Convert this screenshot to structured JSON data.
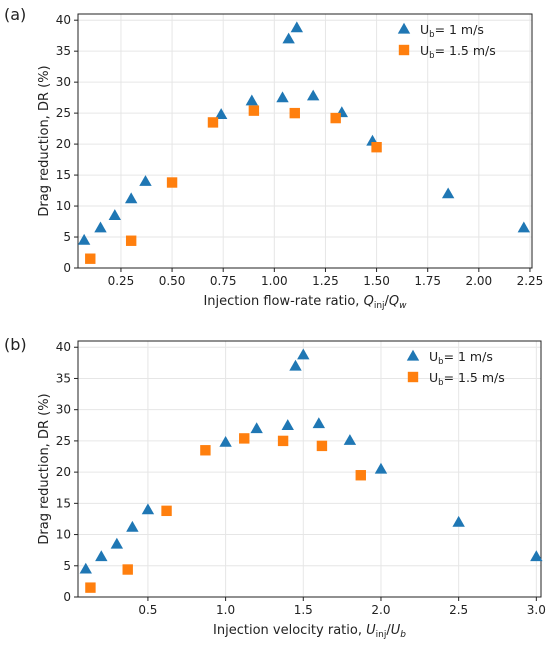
{
  "colors": {
    "series_1": "#1f77b4",
    "series_2": "#ff7f0e"
  },
  "chart_data": [
    {
      "type": "scatter",
      "panel_label": "(a)",
      "xlabel": "Injection flow-rate ratio, Q_inj/Q_w",
      "xlabel_parts": {
        "main": "Injection flow-rate ratio, ",
        "var1": "Q",
        "sub1": "inj",
        "slash": "/",
        "var2": "Q",
        "sub2": "w"
      },
      "ylabel": "Drag reduction, DR (%)",
      "xlim": [
        0.04,
        2.26
      ],
      "ylim": [
        0,
        41
      ],
      "xticks": [
        0.25,
        0.5,
        0.75,
        1.0,
        1.25,
        1.5,
        1.75,
        2.0,
        2.25
      ],
      "xtick_labels": [
        "0.25",
        "0.50",
        "0.75",
        "1.00",
        "1.25",
        "1.50",
        "1.75",
        "2.00",
        "2.25"
      ],
      "yticks": [
        0,
        5,
        10,
        15,
        20,
        25,
        30,
        35,
        40
      ],
      "ytick_labels": [
        "0",
        "5",
        "10",
        "15",
        "20",
        "25",
        "30",
        "35",
        "40"
      ],
      "grid": true,
      "legend_position": "top-right",
      "series": [
        {
          "name": "U_b= 1 m/s",
          "label_main": "U",
          "label_sub": "b",
          "label_rest": "= 1 m/s",
          "marker": "triangle",
          "points": [
            [
              0.07,
              4.5
            ],
            [
              0.15,
              6.5
            ],
            [
              0.22,
              8.5
            ],
            [
              0.3,
              11.2
            ],
            [
              0.37,
              14.0
            ],
            [
              0.74,
              24.8
            ],
            [
              0.89,
              27.0
            ],
            [
              1.04,
              27.5
            ],
            [
              1.07,
              37.0
            ],
            [
              1.11,
              38.8
            ],
            [
              1.19,
              27.8
            ],
            [
              1.33,
              25.1
            ],
            [
              1.48,
              20.5
            ],
            [
              1.85,
              12.0
            ],
            [
              2.22,
              6.5
            ]
          ]
        },
        {
          "name": "U_b= 1.5 m/s",
          "label_main": "U",
          "label_sub": "b",
          "label_rest": "= 1.5 m/s",
          "marker": "square",
          "points": [
            [
              0.1,
              1.5
            ],
            [
              0.3,
              4.4
            ],
            [
              0.5,
              13.8
            ],
            [
              0.7,
              23.5
            ],
            [
              0.9,
              25.4
            ],
            [
              1.1,
              25.0
            ],
            [
              1.3,
              24.2
            ],
            [
              1.5,
              19.5
            ]
          ]
        }
      ]
    },
    {
      "type": "scatter",
      "panel_label": "(b)",
      "xlabel": "Injection velocity ratio, U_inj/U_b",
      "xlabel_parts": {
        "main": "Injection velocity ratio, ",
        "var1": "U",
        "sub1": "inj",
        "slash": "/",
        "var2": "U",
        "sub2": "b"
      },
      "ylabel": "Drag reduction, DR (%)",
      "xlim": [
        0.05,
        3.03
      ],
      "ylim": [
        0,
        41
      ],
      "xticks": [
        0.5,
        1.0,
        1.5,
        2.0,
        2.5,
        3.0
      ],
      "xtick_labels": [
        "0.5",
        "1.0",
        "1.5",
        "2.0",
        "2.5",
        "3.0"
      ],
      "yticks": [
        0,
        5,
        10,
        15,
        20,
        25,
        30,
        35,
        40
      ],
      "ytick_labels": [
        "0",
        "5",
        "10",
        "15",
        "20",
        "25",
        "30",
        "35",
        "40"
      ],
      "grid": true,
      "legend_position": "top-right",
      "series": [
        {
          "name": "U_b= 1 m/s",
          "label_main": "U",
          "label_sub": "b",
          "label_rest": "= 1 m/s",
          "marker": "triangle",
          "points": [
            [
              0.1,
              4.5
            ],
            [
              0.2,
              6.5
            ],
            [
              0.3,
              8.5
            ],
            [
              0.4,
              11.2
            ],
            [
              0.5,
              14.0
            ],
            [
              1.0,
              24.8
            ],
            [
              1.2,
              27.0
            ],
            [
              1.4,
              27.5
            ],
            [
              1.45,
              37.0
            ],
            [
              1.5,
              38.8
            ],
            [
              1.6,
              27.8
            ],
            [
              1.8,
              25.1
            ],
            [
              2.0,
              20.5
            ],
            [
              2.5,
              12.0
            ],
            [
              3.0,
              6.5
            ]
          ]
        },
        {
          "name": "U_b= 1.5 m/s",
          "label_main": "U",
          "label_sub": "b",
          "label_rest": "= 1.5 m/s",
          "marker": "square",
          "points": [
            [
              0.13,
              1.5
            ],
            [
              0.37,
              4.4
            ],
            [
              0.62,
              13.8
            ],
            [
              0.87,
              23.5
            ],
            [
              1.12,
              25.4
            ],
            [
              1.37,
              25.0
            ],
            [
              1.62,
              24.2
            ],
            [
              1.87,
              19.5
            ]
          ]
        }
      ]
    }
  ]
}
